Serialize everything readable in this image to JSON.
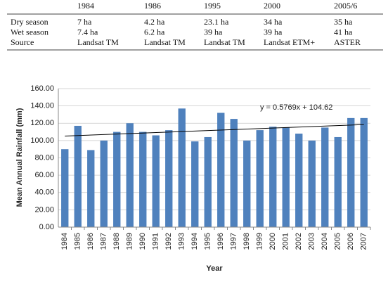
{
  "table": {
    "columns": [
      "1984",
      "1986",
      "1995",
      "2000",
      "2005/6"
    ],
    "rows": [
      {
        "label": "Dry season",
        "cells": [
          "7 ha",
          "4.2 ha",
          "23.1 ha",
          "34 ha",
          "35 ha"
        ]
      },
      {
        "label": "Wet season",
        "cells": [
          "7.4 ha",
          "6.2 ha",
          "39 ha",
          "39 ha",
          "41 ha"
        ]
      },
      {
        "label": "Source",
        "cells": [
          "Landsat TM",
          "Landsat TM",
          "Landsat TM",
          "Landsat ETM+",
          "ASTER"
        ]
      }
    ]
  },
  "chart_data": {
    "type": "bar",
    "x_label": "Year",
    "y_label": "Mean Annual Rainfall (mm)",
    "categories": [
      "1984",
      "1985",
      "1986",
      "1987",
      "1988",
      "1989",
      "1990",
      "1991",
      "1992",
      "1993",
      "1994",
      "1995",
      "1996",
      "1997",
      "1998",
      "1999",
      "2000",
      "2001",
      "2002",
      "2003",
      "2004",
      "2005",
      "2006",
      "2007"
    ],
    "values": [
      90,
      117,
      89,
      100,
      110,
      120,
      110,
      106,
      112,
      137,
      99,
      104,
      132,
      125,
      100,
      112,
      116,
      115,
      108,
      100,
      115,
      104,
      126,
      126
    ],
    "color": "#4f81bd",
    "ylim": [
      0,
      160
    ],
    "yticks": [
      {
        "value": 0,
        "label": "0.00"
      },
      {
        "value": 20,
        "label": "20.00"
      },
      {
        "value": 40,
        "label": "40.00"
      },
      {
        "value": 60,
        "label": "60.00"
      },
      {
        "value": 80,
        "label": "80.00"
      },
      {
        "value": 100,
        "label": "100.00"
      },
      {
        "value": 120,
        "label": "120.00"
      },
      {
        "value": 140,
        "label": "140.00"
      },
      {
        "value": 160,
        "label": "160.00"
      }
    ],
    "grid": true,
    "trendline": {
      "label": "y = 0.5769x + 104.62",
      "slope": 0.5769,
      "intercept": 104.62,
      "color": "#000000"
    }
  }
}
